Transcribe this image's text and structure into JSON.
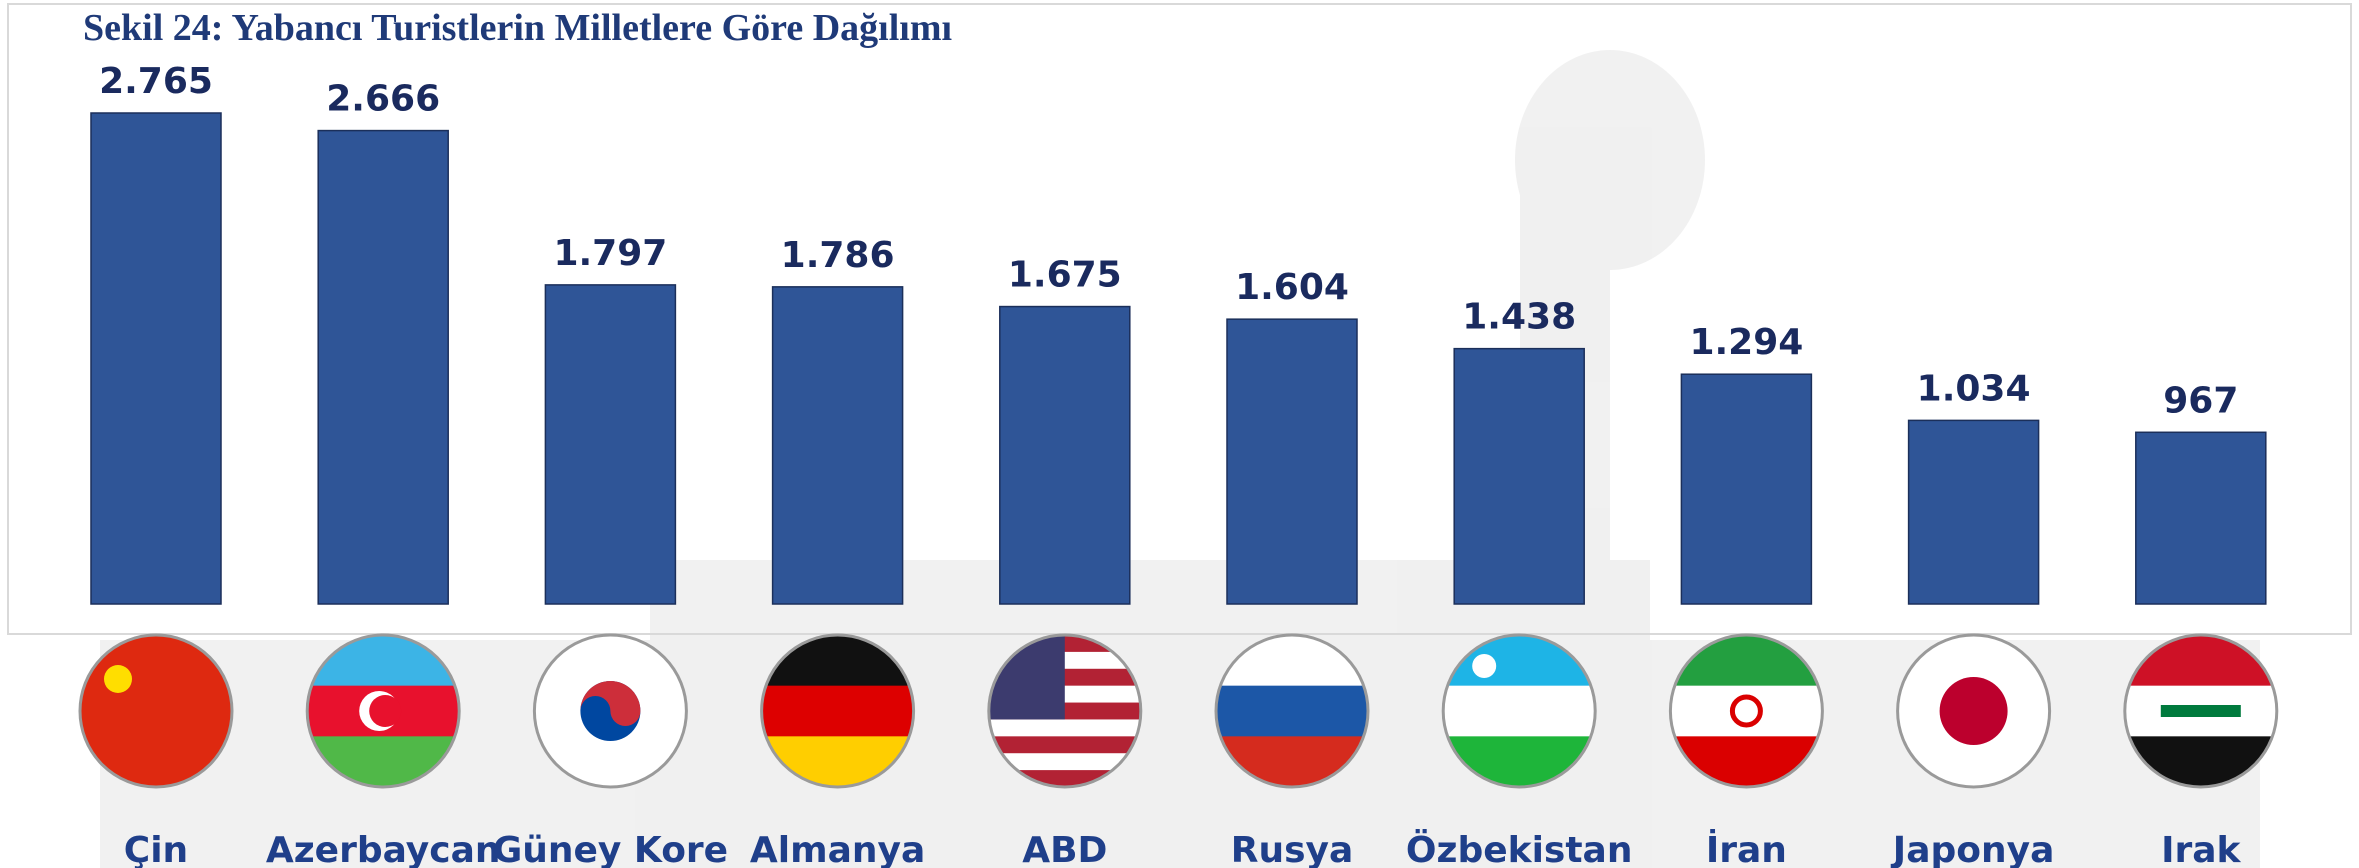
{
  "chart_data": {
    "type": "bar",
    "title": "Sekil 24: Yabancı Turistlerin Milletlere Göre Dağılımı",
    "categories": [
      "Çin",
      "Azerbaycan",
      "Güney Kore",
      "Almanya",
      "ABD",
      "Rusya",
      "Özbekistan",
      "İran",
      "Japonya",
      "Irak"
    ],
    "values": [
      2765,
      2666,
      1797,
      1786,
      1675,
      1604,
      1438,
      1294,
      1034,
      967
    ],
    "value_labels": [
      "2.765",
      "2.666",
      "1.797",
      "1.786",
      "1.675",
      "1.604",
      "1.438",
      "1.294",
      "1.034",
      "967"
    ],
    "color": "#2f5597"
  }
}
